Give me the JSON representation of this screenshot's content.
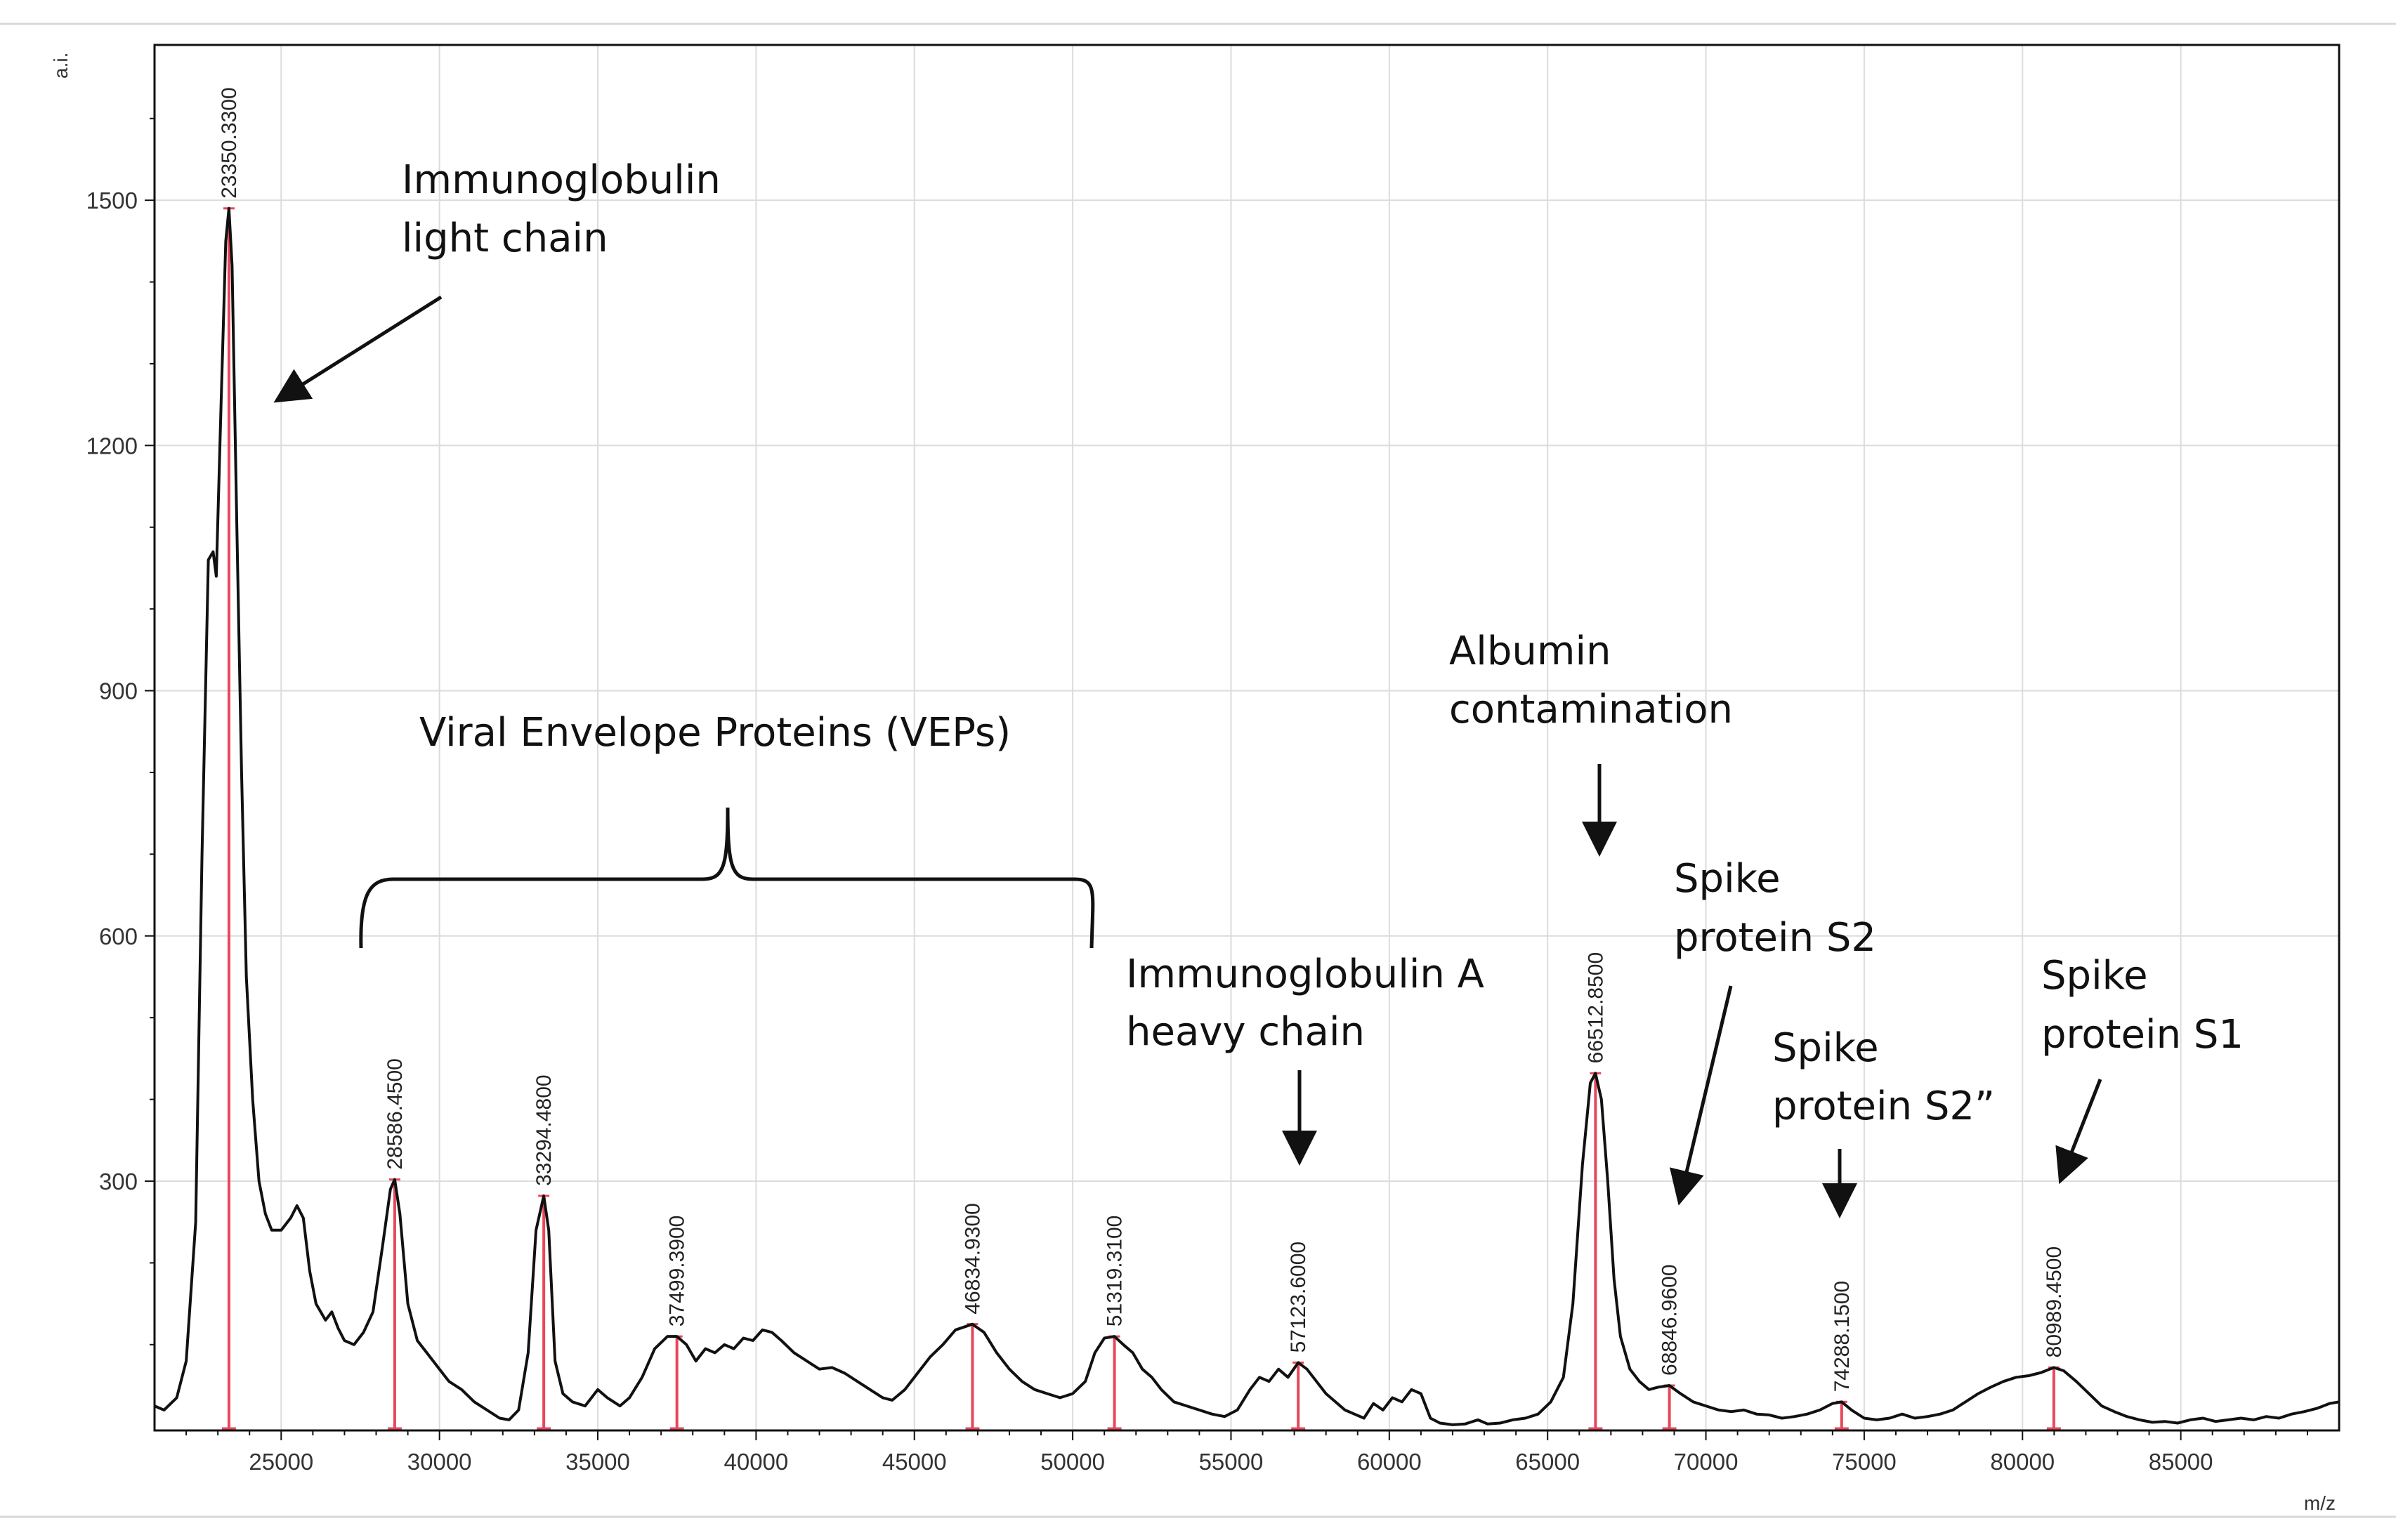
{
  "chart_data": {
    "type": "line",
    "title": "",
    "xlabel": "m/z",
    "ylabel": "a.i.",
    "xlim": [
      21000,
      90000
    ],
    "ylim": [
      -5,
      1690
    ],
    "xticks": [
      25000,
      30000,
      35000,
      40000,
      45000,
      50000,
      55000,
      60000,
      65000,
      70000,
      75000,
      80000,
      85000
    ],
    "yticks": [
      300,
      600,
      900,
      1200,
      1500
    ],
    "grid": true,
    "colors": {
      "spectrum": "#111111",
      "peak_marker": "#e8475a",
      "grid": "#dcdcdc",
      "frame": "#111111"
    },
    "peaks": [
      {
        "mz": 23350.33,
        "label": "23350.3300",
        "intensity": 1490
      },
      {
        "mz": 28586.45,
        "label": "28586.4500",
        "intensity": 302
      },
      {
        "mz": 33294.48,
        "label": "33294.4800",
        "intensity": 282
      },
      {
        "mz": 37499.39,
        "label": "37499.3900",
        "intensity": 110
      },
      {
        "mz": 46834.93,
        "label": "46834.9300",
        "intensity": 125
      },
      {
        "mz": 51319.31,
        "label": "51319.3100",
        "intensity": 110
      },
      {
        "mz": 57123.6,
        "label": "57123.6000",
        "intensity": 78
      },
      {
        "mz": 66512.85,
        "label": "66512.8500",
        "intensity": 432
      },
      {
        "mz": 68846.96,
        "label": "68846.9600",
        "intensity": 50
      },
      {
        "mz": 74288.15,
        "label": "74288.1500",
        "intensity": 30
      },
      {
        "mz": 80989.45,
        "label": "80989.4500",
        "intensity": 72
      }
    ],
    "spectrum": [
      [
        21000,
        25
      ],
      [
        21300,
        20
      ],
      [
        21700,
        35
      ],
      [
        22000,
        80
      ],
      [
        22300,
        250
      ],
      [
        22500,
        700
      ],
      [
        22700,
        1060
      ],
      [
        22850,
        1070
      ],
      [
        22950,
        1040
      ],
      [
        23100,
        1250
      ],
      [
        23250,
        1450
      ],
      [
        23350,
        1490
      ],
      [
        23450,
        1420
      ],
      [
        23600,
        1100
      ],
      [
        23750,
        800
      ],
      [
        23900,
        550
      ],
      [
        24100,
        400
      ],
      [
        24300,
        300
      ],
      [
        24500,
        260
      ],
      [
        24700,
        240
      ],
      [
        25000,
        240
      ],
      [
        25300,
        255
      ],
      [
        25500,
        270
      ],
      [
        25700,
        255
      ],
      [
        25900,
        190
      ],
      [
        26100,
        150
      ],
      [
        26400,
        130
      ],
      [
        26600,
        140
      ],
      [
        26800,
        120
      ],
      [
        27000,
        105
      ],
      [
        27300,
        100
      ],
      [
        27600,
        115
      ],
      [
        27900,
        140
      ],
      [
        28200,
        220
      ],
      [
        28450,
        290
      ],
      [
        28586,
        302
      ],
      [
        28750,
        260
      ],
      [
        29000,
        150
      ],
      [
        29300,
        105
      ],
      [
        29600,
        90
      ],
      [
        29900,
        75
      ],
      [
        30300,
        55
      ],
      [
        30700,
        45
      ],
      [
        31100,
        30
      ],
      [
        31500,
        20
      ],
      [
        31900,
        10
      ],
      [
        32200,
        8
      ],
      [
        32500,
        20
      ],
      [
        32800,
        90
      ],
      [
        33050,
        240
      ],
      [
        33294,
        282
      ],
      [
        33450,
        240
      ],
      [
        33650,
        80
      ],
      [
        33900,
        40
      ],
      [
        34200,
        30
      ],
      [
        34600,
        25
      ],
      [
        35000,
        45
      ],
      [
        35300,
        35
      ],
      [
        35700,
        25
      ],
      [
        36000,
        35
      ],
      [
        36400,
        60
      ],
      [
        36800,
        95
      ],
      [
        37200,
        110
      ],
      [
        37499,
        110
      ],
      [
        37800,
        100
      ],
      [
        38100,
        80
      ],
      [
        38400,
        95
      ],
      [
        38700,
        90
      ],
      [
        39000,
        100
      ],
      [
        39300,
        95
      ],
      [
        39600,
        108
      ],
      [
        39900,
        105
      ],
      [
        40200,
        118
      ],
      [
        40500,
        115
      ],
      [
        40800,
        105
      ],
      [
        41200,
        90
      ],
      [
        41600,
        80
      ],
      [
        42000,
        70
      ],
      [
        42400,
        72
      ],
      [
        42800,
        65
      ],
      [
        43200,
        55
      ],
      [
        43600,
        45
      ],
      [
        44000,
        35
      ],
      [
        44300,
        32
      ],
      [
        44700,
        45
      ],
      [
        45100,
        65
      ],
      [
        45500,
        85
      ],
      [
        45900,
        100
      ],
      [
        46300,
        118
      ],
      [
        46834,
        125
      ],
      [
        47200,
        115
      ],
      [
        47600,
        90
      ],
      [
        48000,
        70
      ],
      [
        48400,
        55
      ],
      [
        48800,
        45
      ],
      [
        49200,
        40
      ],
      [
        49600,
        35
      ],
      [
        50000,
        40
      ],
      [
        50400,
        55
      ],
      [
        50700,
        90
      ],
      [
        51000,
        108
      ],
      [
        51319,
        110
      ],
      [
        51600,
        100
      ],
      [
        51900,
        90
      ],
      [
        52200,
        70
      ],
      [
        52500,
        60
      ],
      [
        52800,
        45
      ],
      [
        53200,
        30
      ],
      [
        53600,
        25
      ],
      [
        54000,
        20
      ],
      [
        54400,
        15
      ],
      [
        54800,
        12
      ],
      [
        55200,
        20
      ],
      [
        55600,
        45
      ],
      [
        55900,
        60
      ],
      [
        56200,
        55
      ],
      [
        56500,
        70
      ],
      [
        56800,
        60
      ],
      [
        57123,
        78
      ],
      [
        57400,
        70
      ],
      [
        57700,
        55
      ],
      [
        58000,
        40
      ],
      [
        58300,
        30
      ],
      [
        58600,
        20
      ],
      [
        58900,
        15
      ],
      [
        59200,
        10
      ],
      [
        59500,
        28
      ],
      [
        59800,
        20
      ],
      [
        60100,
        35
      ],
      [
        60400,
        30
      ],
      [
        60700,
        45
      ],
      [
        61000,
        40
      ],
      [
        61300,
        10
      ],
      [
        61600,
        4
      ],
      [
        62000,
        2
      ],
      [
        62400,
        3
      ],
      [
        62800,
        8
      ],
      [
        63100,
        3
      ],
      [
        63500,
        4
      ],
      [
        63900,
        8
      ],
      [
        64300,
        10
      ],
      [
        64700,
        15
      ],
      [
        65100,
        30
      ],
      [
        65500,
        60
      ],
      [
        65800,
        150
      ],
      [
        66100,
        320
      ],
      [
        66350,
        420
      ],
      [
        66512,
        432
      ],
      [
        66700,
        400
      ],
      [
        66900,
        300
      ],
      [
        67100,
        180
      ],
      [
        67300,
        110
      ],
      [
        67600,
        70
      ],
      [
        67900,
        55
      ],
      [
        68200,
        45
      ],
      [
        68500,
        48
      ],
      [
        68846,
        50
      ],
      [
        69200,
        40
      ],
      [
        69600,
        30
      ],
      [
        70000,
        25
      ],
      [
        70400,
        20
      ],
      [
        70800,
        18
      ],
      [
        71200,
        20
      ],
      [
        71600,
        15
      ],
      [
        72000,
        14
      ],
      [
        72400,
        10
      ],
      [
        72800,
        12
      ],
      [
        73200,
        15
      ],
      [
        73600,
        20
      ],
      [
        74000,
        28
      ],
      [
        74288,
        30
      ],
      [
        74600,
        20
      ],
      [
        75000,
        10
      ],
      [
        75400,
        8
      ],
      [
        75800,
        10
      ],
      [
        76200,
        15
      ],
      [
        76600,
        10
      ],
      [
        77000,
        12
      ],
      [
        77400,
        15
      ],
      [
        77800,
        20
      ],
      [
        78200,
        30
      ],
      [
        78600,
        40
      ],
      [
        79000,
        48
      ],
      [
        79400,
        55
      ],
      [
        79800,
        60
      ],
      [
        80200,
        62
      ],
      [
        80600,
        66
      ],
      [
        80989,
        72
      ],
      [
        81300,
        68
      ],
      [
        81700,
        55
      ],
      [
        82100,
        40
      ],
      [
        82500,
        25
      ],
      [
        82900,
        18
      ],
      [
        83300,
        12
      ],
      [
        83700,
        8
      ],
      [
        84100,
        5
      ],
      [
        84500,
        6
      ],
      [
        84900,
        4
      ],
      [
        85300,
        8
      ],
      [
        85700,
        10
      ],
      [
        86100,
        6
      ],
      [
        86500,
        8
      ],
      [
        86900,
        10
      ],
      [
        87300,
        8
      ],
      [
        87700,
        12
      ],
      [
        88100,
        10
      ],
      [
        88500,
        15
      ],
      [
        88900,
        18
      ],
      [
        89300,
        22
      ],
      [
        89700,
        28
      ],
      [
        90000,
        30
      ]
    ],
    "annotations": {
      "light_chain": {
        "line1": "Immunoglobulin",
        "line2": "light chain"
      },
      "veps": {
        "line1": "Viral Envelope Proteins (VEPs)"
      },
      "iga": {
        "line1": "Immunoglobulin A",
        "line2": "heavy chain"
      },
      "albumin": {
        "line1": "Albumin",
        "line2": "contamination"
      },
      "s2": {
        "line1": "Spike",
        "line2": "protein S2"
      },
      "s2pp": {
        "line1": "Spike",
        "line2": "protein S2”"
      },
      "s1": {
        "line1": "Spike",
        "line2": "protein S1"
      }
    }
  }
}
